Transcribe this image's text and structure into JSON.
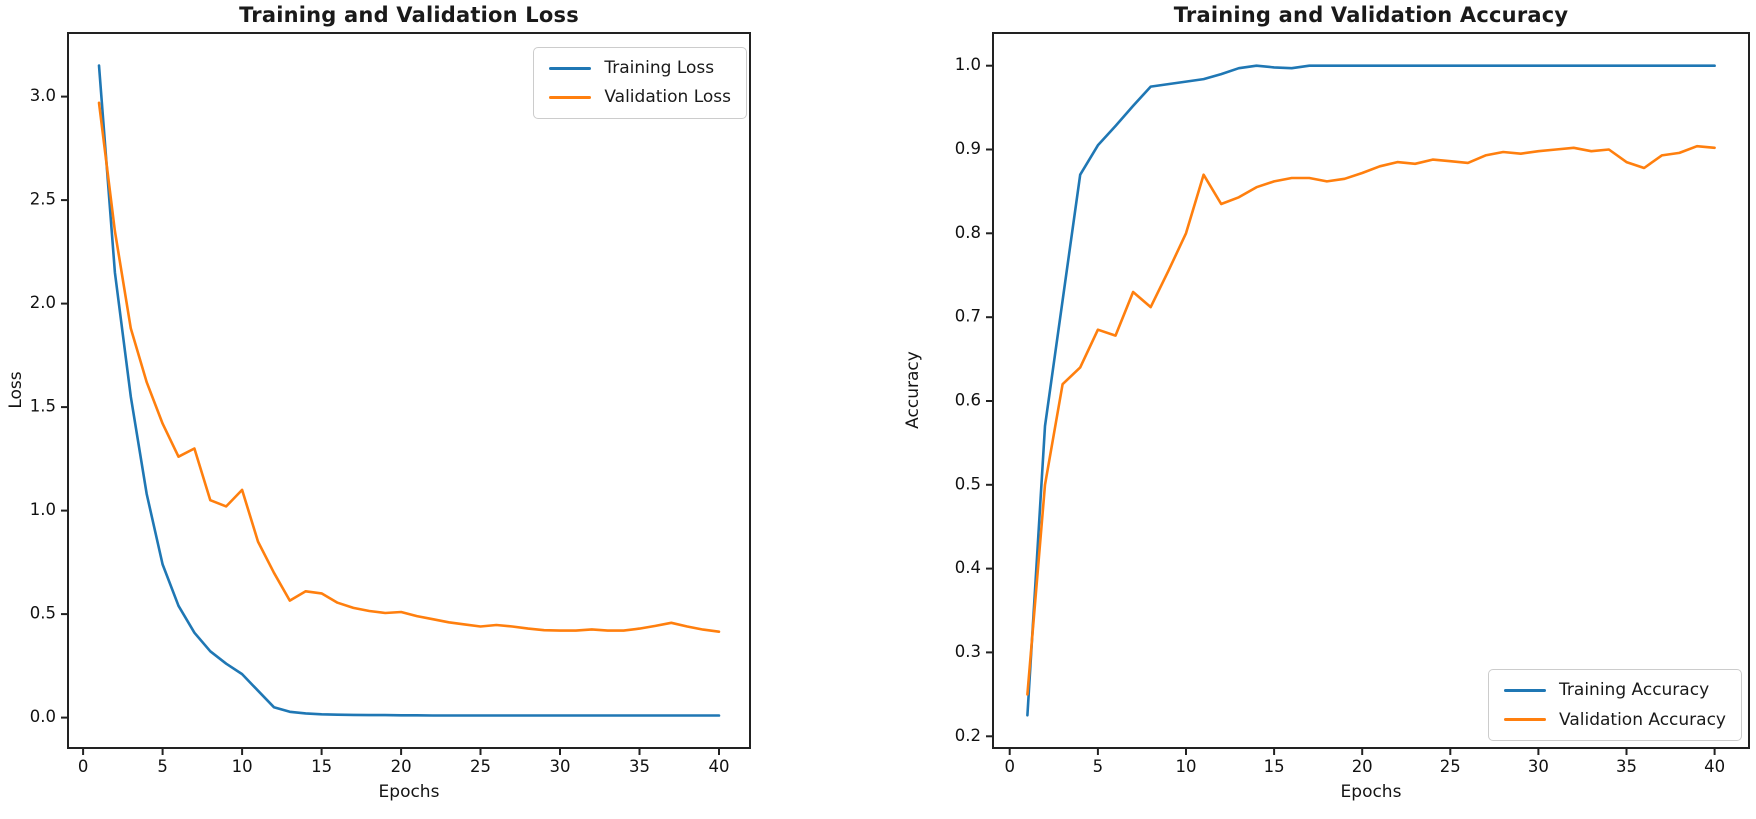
{
  "figure": {
    "background": "#ffffff",
    "text_color": "#1a1a1a",
    "spine_color": "#222222"
  },
  "chart_data": [
    {
      "type": "line",
      "title": "Training and Validation Loss",
      "xlabel": "Epochs",
      "ylabel": "Loss",
      "legend_position": "upper right",
      "grid": false,
      "xlim": [
        -0.95,
        41.95
      ],
      "ylim": [
        -0.147,
        3.307
      ],
      "x_tick_values": [
        0,
        5,
        10,
        15,
        20,
        25,
        30,
        35,
        40
      ],
      "x_ticks": [
        "0",
        "5",
        "10",
        "15",
        "20",
        "25",
        "30",
        "35",
        "40"
      ],
      "y_tick_values": [
        0.0,
        0.5,
        1.0,
        1.5,
        2.0,
        2.5,
        3.0
      ],
      "y_ticks": [
        "0.0",
        "0.5",
        "1.0",
        "1.5",
        "2.0",
        "2.5",
        "3.0"
      ],
      "x": [
        1,
        2,
        3,
        4,
        5,
        6,
        7,
        8,
        9,
        10,
        11,
        12,
        13,
        14,
        15,
        16,
        17,
        18,
        19,
        20,
        21,
        22,
        23,
        24,
        25,
        26,
        27,
        28,
        29,
        30,
        31,
        32,
        33,
        34,
        35,
        36,
        37,
        38,
        39,
        40
      ],
      "series": [
        {
          "name": "Training Loss",
          "color": "#1f77b4",
          "values": [
            3.15,
            2.15,
            1.55,
            1.08,
            0.74,
            0.54,
            0.41,
            0.32,
            0.26,
            0.21,
            0.13,
            0.05,
            0.028,
            0.02,
            0.016,
            0.014,
            0.013,
            0.012,
            0.012,
            0.011,
            0.011,
            0.01,
            0.01,
            0.01,
            0.01,
            0.01,
            0.01,
            0.01,
            0.01,
            0.01,
            0.01,
            0.01,
            0.01,
            0.01,
            0.01,
            0.01,
            0.01,
            0.01,
            0.01,
            0.01
          ]
        },
        {
          "name": "Validation Loss",
          "color": "#ff7f0e",
          "values": [
            2.97,
            2.35,
            1.88,
            1.62,
            1.42,
            1.26,
            1.3,
            1.05,
            1.02,
            1.1,
            0.85,
            0.7,
            0.565,
            0.61,
            0.6,
            0.555,
            0.53,
            0.515,
            0.505,
            0.51,
            0.49,
            0.475,
            0.46,
            0.45,
            0.44,
            0.447,
            0.44,
            0.43,
            0.422,
            0.42,
            0.42,
            0.426,
            0.42,
            0.42,
            0.43,
            0.443,
            0.458,
            0.44,
            0.425,
            0.415
          ]
        }
      ]
    },
    {
      "type": "line",
      "title": "Training and Validation Accuracy",
      "xlabel": "Epochs",
      "ylabel": "Accuracy",
      "legend_position": "lower right",
      "grid": false,
      "xlim": [
        -0.95,
        41.95
      ],
      "ylim": [
        0.186,
        1.039
      ],
      "x_tick_values": [
        0,
        5,
        10,
        15,
        20,
        25,
        30,
        35,
        40
      ],
      "x_ticks": [
        "0",
        "5",
        "10",
        "15",
        "20",
        "25",
        "30",
        "35",
        "40"
      ],
      "y_tick_values": [
        0.2,
        0.3,
        0.4,
        0.5,
        0.6,
        0.7,
        0.8,
        0.9,
        1.0
      ],
      "y_ticks": [
        "0.2",
        "0.3",
        "0.4",
        "0.5",
        "0.6",
        "0.7",
        "0.8",
        "0.9",
        "1.0"
      ],
      "x": [
        1,
        2,
        3,
        4,
        5,
        6,
        7,
        8,
        9,
        10,
        11,
        12,
        13,
        14,
        15,
        16,
        17,
        18,
        19,
        20,
        21,
        22,
        23,
        24,
        25,
        26,
        27,
        28,
        29,
        30,
        31,
        32,
        33,
        34,
        35,
        36,
        37,
        38,
        39,
        40
      ],
      "series": [
        {
          "name": "Training Accuracy",
          "color": "#1f77b4",
          "values": [
            0.225,
            0.57,
            0.72,
            0.87,
            0.905,
            0.928,
            0.952,
            0.975,
            0.978,
            0.981,
            0.984,
            0.99,
            0.997,
            1.0,
            0.998,
            0.997,
            1.0,
            1.0,
            1.0,
            1.0,
            1.0,
            1.0,
            1.0,
            1.0,
            1.0,
            1.0,
            1.0,
            1.0,
            1.0,
            1.0,
            1.0,
            1.0,
            1.0,
            1.0,
            1.0,
            1.0,
            1.0,
            1.0,
            1.0,
            1.0
          ]
        },
        {
          "name": "Validation Accuracy",
          "color": "#ff7f0e",
          "values": [
            0.25,
            0.5,
            0.62,
            0.64,
            0.685,
            0.678,
            0.73,
            0.712,
            0.755,
            0.8,
            0.87,
            0.835,
            0.843,
            0.855,
            0.862,
            0.866,
            0.866,
            0.862,
            0.865,
            0.872,
            0.88,
            0.885,
            0.883,
            0.888,
            0.886,
            0.884,
            0.893,
            0.897,
            0.895,
            0.898,
            0.9,
            0.902,
            0.898,
            0.9,
            0.885,
            0.878,
            0.893,
            0.896,
            0.904,
            0.902
          ]
        }
      ]
    }
  ]
}
